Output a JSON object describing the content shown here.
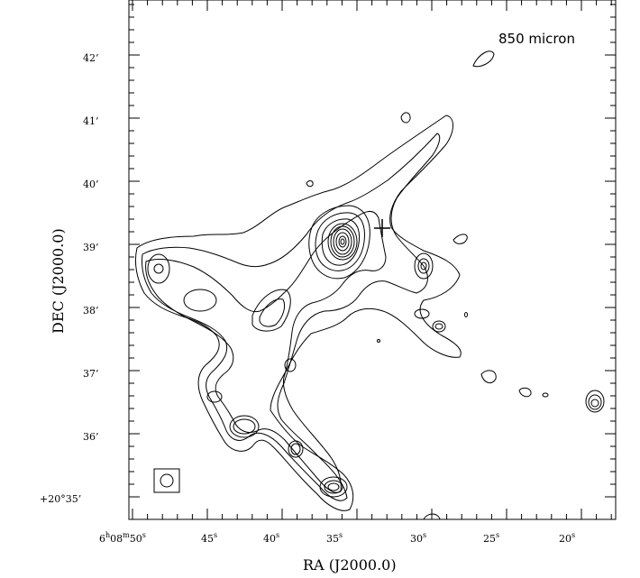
{
  "annotation": "850 micron",
  "xlabel": "RA (J2000.0)",
  "ylabel": "DEC (J2000.0)",
  "x_ticks": {
    "first": {
      "h": "6",
      "m": "08",
      "s": "50",
      "suffix": "s"
    },
    "rest": [
      {
        "value": "45",
        "unit": "s"
      },
      {
        "value": "40",
        "unit": "s"
      },
      {
        "value": "35",
        "unit": "s"
      },
      {
        "value": "30",
        "unit": "s"
      },
      {
        "value": "25",
        "unit": "s"
      },
      {
        "value": "20",
        "unit": "s"
      }
    ]
  },
  "y_ticks": {
    "first": {
      "text": "+20°35’"
    },
    "rest": [
      "36’",
      "37’",
      "38’",
      "39’",
      "40’",
      "41’",
      "42’"
    ]
  },
  "colors": {
    "line": "#000000",
    "background": "#ffffff"
  },
  "icons": {
    "marker": "plus-marker",
    "beam": "beam-size-circle"
  }
}
